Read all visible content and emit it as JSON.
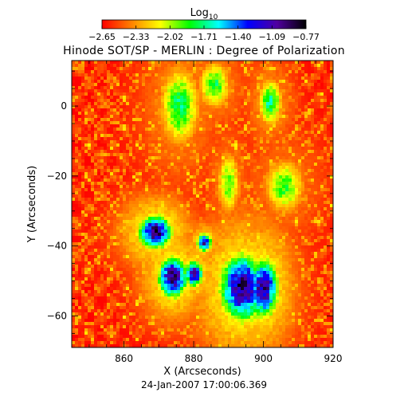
{
  "chart_data": {
    "type": "heatmap",
    "title": "Hinode SOT/SP - MERLIN : Degree of Polarization",
    "xlabel": "X (Arcseconds)",
    "ylabel": "Y (Arcseconds)",
    "date": "24-Jan-2007 17:00:06.369",
    "xlim": [
      845,
      920
    ],
    "ylim": [
      -69,
      13
    ],
    "xticks": [
      860,
      880,
      900,
      920
    ],
    "yticks": [
      0,
      -20,
      -40,
      -60
    ],
    "colorbar": {
      "label_base": "Log",
      "label_sub": "10",
      "min": -2.65,
      "max": -0.77,
      "ticks": [
        "-2.65",
        "-2.33",
        "-2.02",
        "-1.71",
        "-1.40",
        "-1.09",
        "-0.77"
      ],
      "colors": [
        "#ff0000",
        "#ff8000",
        "#ffff00",
        "#00ff00",
        "#00ffff",
        "#0000ff",
        "#5000a0",
        "#000000"
      ]
    },
    "features": [
      {
        "x": 869,
        "y": -36,
        "level": -0.95,
        "rx": 4.5,
        "ry": 4.5
      },
      {
        "x": 874,
        "y": -49,
        "level": -0.95,
        "rx": 4,
        "ry": 5.5
      },
      {
        "x": 880,
        "y": -48,
        "level": -1.05,
        "rx": 2.5,
        "ry": 3.5
      },
      {
        "x": 883,
        "y": -39,
        "level": -1.15,
        "rx": 2,
        "ry": 2.5
      },
      {
        "x": 894,
        "y": -52,
        "level": -0.95,
        "rx": 6,
        "ry": 9
      },
      {
        "x": 900,
        "y": -52,
        "level": -1.0,
        "rx": 4,
        "ry": 8
      },
      {
        "x": 876,
        "y": 0,
        "level": -1.75,
        "rx": 5,
        "ry": 10
      },
      {
        "x": 886,
        "y": 6,
        "level": -1.8,
        "rx": 4,
        "ry": 6
      },
      {
        "x": 902,
        "y": 1,
        "level": -1.7,
        "rx": 3,
        "ry": 6
      },
      {
        "x": 890,
        "y": -22,
        "level": -1.9,
        "rx": 3,
        "ry": 8
      },
      {
        "x": 906,
        "y": -23,
        "level": -1.85,
        "rx": 5,
        "ry": 7
      }
    ]
  }
}
